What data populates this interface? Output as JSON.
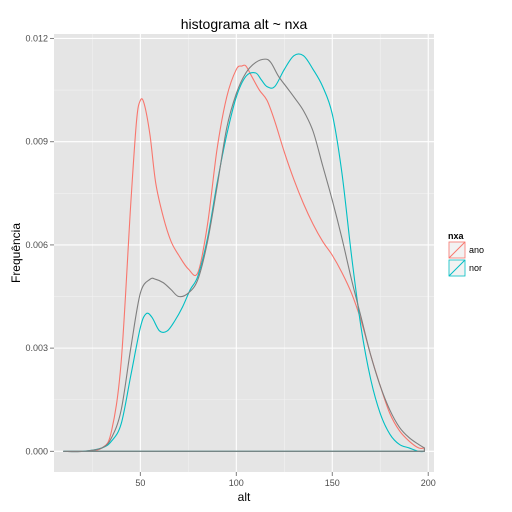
{
  "chart_data": {
    "type": "line",
    "title": "histograma alt ~ nxa",
    "xlabel": "alt",
    "ylabel": "Frequência",
    "xlim": [
      5,
      203
    ],
    "ylim": [
      -0.0006,
      0.01213
    ],
    "x_ticks": [
      50,
      100,
      150,
      200
    ],
    "x_tick_labels": [
      "50",
      "100",
      "150",
      "200"
    ],
    "y_ticks": [
      0.0,
      0.003,
      0.006,
      0.009,
      0.012
    ],
    "y_tick_labels": [
      "0.000",
      "0.003",
      "0.006",
      "0.009",
      "0.012"
    ],
    "grid": true,
    "background": "#e5e5e5",
    "legend": {
      "title": "nxa",
      "position": "right",
      "entries": [
        {
          "label": "ano",
          "color": "#f8766d"
        },
        {
          "label": "nor",
          "color": "#00bfc4"
        }
      ]
    },
    "series": [
      {
        "name": "ano",
        "color": "#f8766d",
        "x": [
          10,
          20,
          30,
          35,
          40,
          45,
          48,
          50,
          52,
          55,
          58,
          62,
          66,
          70,
          75,
          80,
          85,
          90,
          95,
          100,
          103,
          105,
          108,
          112,
          116,
          120,
          125,
          130,
          135,
          140,
          145,
          150,
          155,
          160,
          165,
          170,
          175,
          180,
          185,
          190,
          195,
          198
        ],
        "y": [
          0.0,
          0.0,
          0.0001,
          0.0006,
          0.0026,
          0.0072,
          0.0096,
          0.0102,
          0.0101,
          0.0092,
          0.0078,
          0.0068,
          0.0061,
          0.0057,
          0.0053,
          0.0052,
          0.0066,
          0.0088,
          0.0103,
          0.0111,
          0.0112,
          0.0112,
          0.0109,
          0.0105,
          0.0102,
          0.0096,
          0.0087,
          0.0079,
          0.0072,
          0.0066,
          0.0061,
          0.0057,
          0.0052,
          0.0046,
          0.0038,
          0.0028,
          0.0019,
          0.0011,
          0.0006,
          0.0003,
          0.0001,
          0.0001
        ]
      },
      {
        "name": "nor",
        "color": "#00bfc4",
        "x": [
          10,
          20,
          30,
          35,
          40,
          45,
          50,
          53,
          56,
          60,
          64,
          68,
          72,
          76,
          80,
          85,
          90,
          95,
          100,
          105,
          110,
          113,
          116,
          120,
          125,
          130,
          135,
          140,
          145,
          150,
          155,
          160,
          165,
          170,
          175,
          180,
          185,
          190,
          195,
          198
        ],
        "y": [
          0.0,
          0.0,
          0.0001,
          0.0003,
          0.0008,
          0.0022,
          0.0036,
          0.004,
          0.0039,
          0.0035,
          0.0035,
          0.0038,
          0.0042,
          0.0047,
          0.0051,
          0.0062,
          0.0078,
          0.0092,
          0.0103,
          0.0109,
          0.011,
          0.0108,
          0.0106,
          0.0106,
          0.0111,
          0.0115,
          0.0115,
          0.0111,
          0.0106,
          0.0098,
          0.0081,
          0.0057,
          0.0036,
          0.0021,
          0.0011,
          0.0005,
          0.0002,
          0.0001,
          0.0,
          0.0
        ]
      },
      {
        "name": "",
        "color": "#7f7f7f",
        "x": [
          10,
          20,
          30,
          35,
          40,
          45,
          50,
          55,
          58,
          62,
          66,
          70,
          75,
          80,
          85,
          90,
          95,
          100,
          105,
          110,
          115,
          118,
          122,
          126,
          130,
          135,
          140,
          145,
          150,
          155,
          160,
          165,
          170,
          175,
          180,
          185,
          190,
          195,
          198
        ],
        "y": [
          0.0,
          0.0,
          0.0001,
          0.0004,
          0.0012,
          0.003,
          0.0046,
          0.005,
          0.005,
          0.0049,
          0.0047,
          0.0045,
          0.0046,
          0.005,
          0.0061,
          0.0077,
          0.0094,
          0.0104,
          0.011,
          0.0113,
          0.0114,
          0.0113,
          0.0109,
          0.0106,
          0.0103,
          0.0099,
          0.0093,
          0.0083,
          0.0073,
          0.0062,
          0.005,
          0.0039,
          0.0028,
          0.0019,
          0.0012,
          0.0007,
          0.0004,
          0.0002,
          0.0001
        ]
      }
    ]
  }
}
